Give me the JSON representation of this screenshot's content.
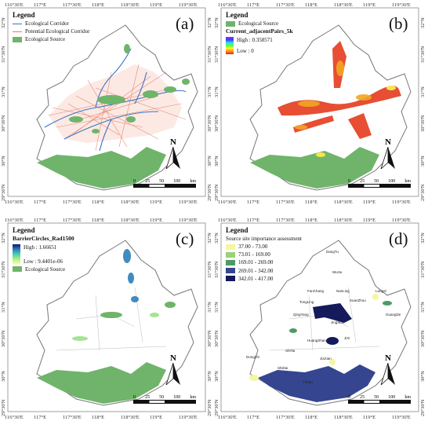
{
  "axes": {
    "lon_labels": [
      "116°30'E",
      "117°E",
      "117°30'E",
      "118°E",
      "118°30'E",
      "119°E",
      "119°30'E"
    ],
    "lat_labels": [
      "32°N",
      "31°30'N",
      "31°N",
      "30°30'N",
      "30°N",
      "29°30'N"
    ]
  },
  "panels": [
    {
      "id": "a",
      "letter": "(a)",
      "legend_title": "Legend",
      "legend_items": [
        {
          "label": "Ecological Corridor",
          "color": "#3b73c6"
        },
        {
          "label": "Potential Ecological Corridor",
          "color": "#e07a6a"
        },
        {
          "label": "Ecological Source",
          "color": "#6fb46a"
        }
      ]
    },
    {
      "id": "b",
      "letter": "(b)",
      "legend_title": "Legend",
      "legend_items": [
        {
          "label": "Ecological Source",
          "color": "#6fb46a"
        }
      ],
      "ramp_title": "Current_adjacentPairs_5k",
      "ramp_high": "High : 0.358571",
      "ramp_low": "Low : 0"
    },
    {
      "id": "c",
      "letter": "(c)",
      "legend_title": "Legend",
      "ramp_title": "BarrierCircles_Rad1500",
      "ramp_high": "High : 1.66651",
      "ramp_low": "Low : 9.4401e-06",
      "legend_items": [
        {
          "label": "Ecological Source",
          "color": "#6fb46a"
        }
      ]
    },
    {
      "id": "d",
      "letter": "(d)",
      "legend_title": "Legend",
      "subtitle": "Source site importance assessment",
      "legend_items": [
        {
          "label": "37.00 - 73.00",
          "color": "#f4f7a0"
        },
        {
          "label": "73.01 - 169.00",
          "color": "#9bd07a"
        },
        {
          "label": "169.01 - 269.00",
          "color": "#4e9b62"
        },
        {
          "label": "269.01 - 342.00",
          "color": "#35458f"
        },
        {
          "label": "342.01 - 417.00",
          "color": "#141a5a"
        }
      ],
      "place_names": [
        "DangTu",
        "WuHu",
        "NanLing",
        "XuanZhou",
        "LangXi",
        "GuangDe",
        "FanChang",
        "TongLing",
        "QingYang",
        "JingXian",
        "HuangShan",
        "JiXi",
        "DongZhi",
        "ShiTai",
        "YiXian",
        "JiaXian",
        "ShiDai"
      ]
    }
  ],
  "north_label": "N",
  "scale": {
    "ticks": [
      "0",
      "25",
      "50",
      "100"
    ],
    "unit": "km"
  }
}
